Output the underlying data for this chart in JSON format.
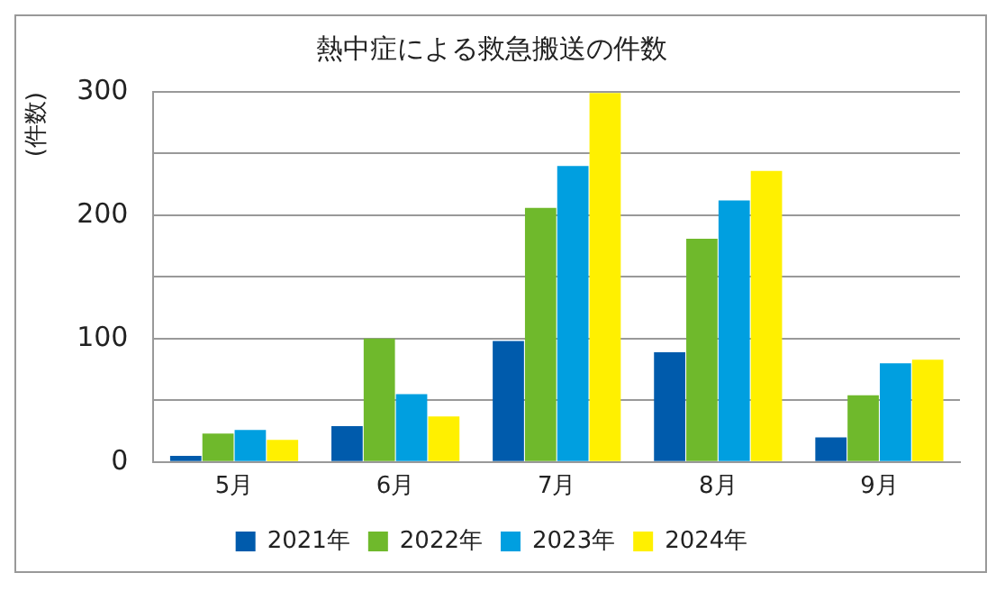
{
  "chart_data": {
    "type": "bar",
    "title": "熱中症による救急搬送の件数",
    "ylabel": "(件数)",
    "categories": [
      "5月",
      "6月",
      "7月",
      "8月",
      "9月"
    ],
    "series": [
      {
        "name": "2021年",
        "color": "#005bac",
        "values": [
          5,
          29,
          98,
          89,
          20
        ]
      },
      {
        "name": "2022年",
        "color": "#6fb92c",
        "values": [
          23,
          100,
          206,
          181,
          54
        ]
      },
      {
        "name": "2023年",
        "color": "#009fe0",
        "values": [
          26,
          55,
          240,
          212,
          80
        ]
      },
      {
        "name": "2024年",
        "color": "#fff000",
        "values": [
          18,
          37,
          299,
          236,
          83
        ]
      }
    ],
    "ylim": [
      0,
      300
    ],
    "yticks": [
      0,
      {
        "value": 50,
        "label": null
      },
      100,
      {
        "value": 150,
        "label": null
      },
      200,
      {
        "value": 250,
        "label": null
      },
      300
    ],
    "grid": "y",
    "legend": "bottom"
  }
}
